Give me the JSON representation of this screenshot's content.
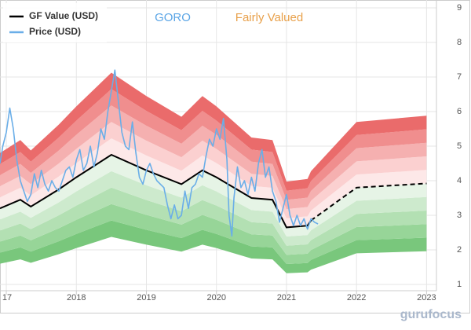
{
  "chart_data": {
    "type": "gf-value",
    "ticker": "GORO",
    "valuation": "Fairly Valued",
    "watermark": "gurufocus",
    "xlim": [
      2016.91,
      2023.13
    ],
    "ylim": [
      1,
      9
    ],
    "xticks": [
      {
        "value": 2017,
        "label": "17"
      },
      2018,
      2019,
      2020,
      2021,
      2022,
      2023
    ],
    "yticks": [
      1,
      2,
      3,
      4,
      5,
      6,
      7,
      8,
      9
    ],
    "grid": true,
    "band_multipliers": [
      0.5,
      0.6,
      0.7,
      0.8,
      0.9,
      1.0,
      1.1,
      1.2,
      1.3,
      1.4,
      1.5
    ],
    "band_colors": [
      "#79c77c",
      "#97d598",
      "#b3e0b3",
      "#cdeacd",
      "#e6f4e6",
      "#fde8e8",
      "#fbd0d0",
      "#f5b0b0",
      "#f08e8e",
      "#ea6b6b"
    ],
    "series": [
      {
        "name": "GF Value (USD)",
        "color": "#000000",
        "dash_from": 2021.35,
        "x": [
          2016.91,
          2017.2,
          2017.35,
          2017.75,
          2018.0,
          2018.5,
          2019.0,
          2019.5,
          2019.8,
          2020.0,
          2020.5,
          2020.8,
          2021.0,
          2021.3,
          2021.35,
          2022.0,
          2023.0
        ],
        "values": [
          3.2,
          3.45,
          3.25,
          3.75,
          4.1,
          4.75,
          4.3,
          3.9,
          4.3,
          4.1,
          3.5,
          3.45,
          2.65,
          2.7,
          2.85,
          3.8,
          3.92
        ]
      },
      {
        "name": "Price (USD)",
        "color": "#6aaee8",
        "x": [
          2016.91,
          2016.95,
          2017.0,
          2017.05,
          2017.1,
          2017.15,
          2017.2,
          2017.25,
          2017.3,
          2017.35,
          2017.4,
          2017.45,
          2017.5,
          2017.55,
          2017.6,
          2017.65,
          2017.7,
          2017.75,
          2017.8,
          2017.85,
          2017.9,
          2017.95,
          2018.0,
          2018.05,
          2018.1,
          2018.15,
          2018.2,
          2018.25,
          2018.3,
          2018.35,
          2018.4,
          2018.45,
          2018.5,
          2018.55,
          2018.6,
          2018.65,
          2018.7,
          2018.75,
          2018.8,
          2018.85,
          2018.9,
          2018.95,
          2019.0,
          2019.05,
          2019.1,
          2019.15,
          2019.2,
          2019.25,
          2019.3,
          2019.35,
          2019.4,
          2019.45,
          2019.5,
          2019.55,
          2019.6,
          2019.65,
          2019.7,
          2019.75,
          2019.8,
          2019.85,
          2019.9,
          2019.95,
          2020.0,
          2020.05,
          2020.1,
          2020.15,
          2020.18,
          2020.22,
          2020.25,
          2020.3,
          2020.35,
          2020.4,
          2020.45,
          2020.5,
          2020.55,
          2020.6,
          2020.65,
          2020.7,
          2020.75,
          2020.8,
          2020.85,
          2020.9,
          2020.95,
          2021.0,
          2021.05,
          2021.1,
          2021.15,
          2021.2,
          2021.25,
          2021.3,
          2021.35,
          2021.4,
          2021.45
        ],
        "values": [
          4.5,
          5.0,
          5.4,
          6.1,
          5.5,
          4.6,
          4.0,
          3.7,
          3.4,
          3.6,
          4.2,
          3.8,
          4.3,
          3.9,
          3.7,
          4.0,
          3.8,
          3.7,
          4.0,
          4.3,
          4.4,
          4.1,
          4.6,
          4.9,
          4.3,
          4.5,
          5.0,
          4.4,
          4.8,
          5.5,
          5.2,
          6.0,
          6.6,
          7.2,
          6.3,
          5.4,
          5.0,
          4.9,
          5.7,
          4.8,
          4.1,
          3.9,
          4.3,
          4.5,
          4.2,
          4.0,
          3.9,
          3.8,
          3.3,
          2.9,
          3.3,
          2.9,
          3.0,
          3.7,
          3.2,
          3.8,
          3.9,
          4.2,
          4.1,
          4.7,
          5.2,
          5.0,
          5.5,
          5.2,
          5.8,
          4.6,
          3.0,
          2.4,
          3.5,
          4.4,
          3.8,
          4.0,
          3.6,
          4.1,
          3.7,
          4.5,
          4.9,
          4.1,
          4.4,
          3.7,
          3.4,
          2.8,
          3.2,
          3.6,
          3.0,
          2.7,
          3.0,
          2.7,
          2.9,
          2.6,
          2.9,
          2.8,
          2.75
        ]
      }
    ]
  }
}
